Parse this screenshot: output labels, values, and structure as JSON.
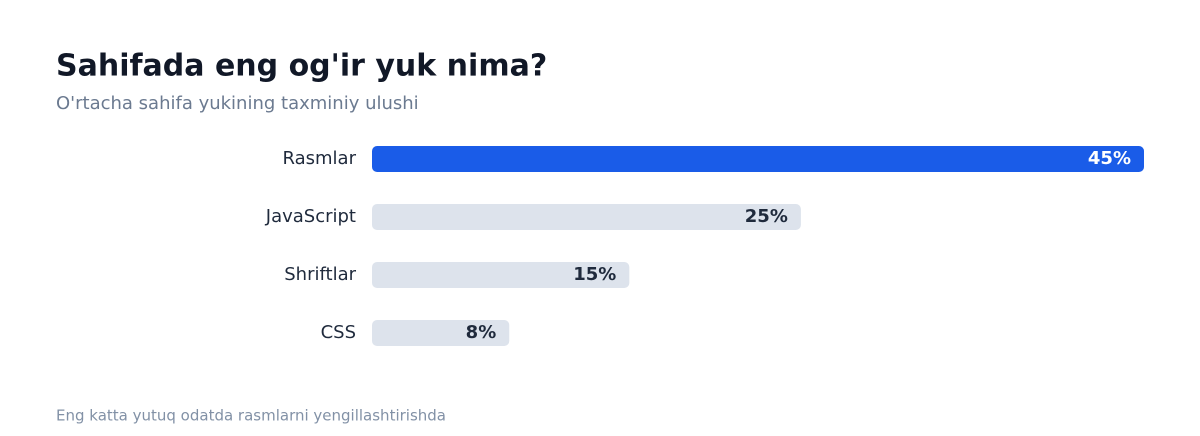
{
  "chart_data": {
    "type": "bar",
    "orientation": "horizontal",
    "title": "Sahifada eng og'ir yuk nima?",
    "subtitle": "O'rtacha sahifa yukining taxminiy ulushi",
    "categories": [
      "Rasmlar",
      "JavaScript",
      "Shriftlar",
      "CSS"
    ],
    "values": [
      45,
      25,
      15,
      8
    ],
    "value_labels": [
      "45%",
      "25%",
      "15%",
      "8%"
    ],
    "colors": [
      "#1a5ce8",
      "#dde3ec",
      "#dde3ec",
      "#dde3ec"
    ],
    "footnote": "Eng katta yutuq odatda rasmlarni yengillashtirishda"
  }
}
